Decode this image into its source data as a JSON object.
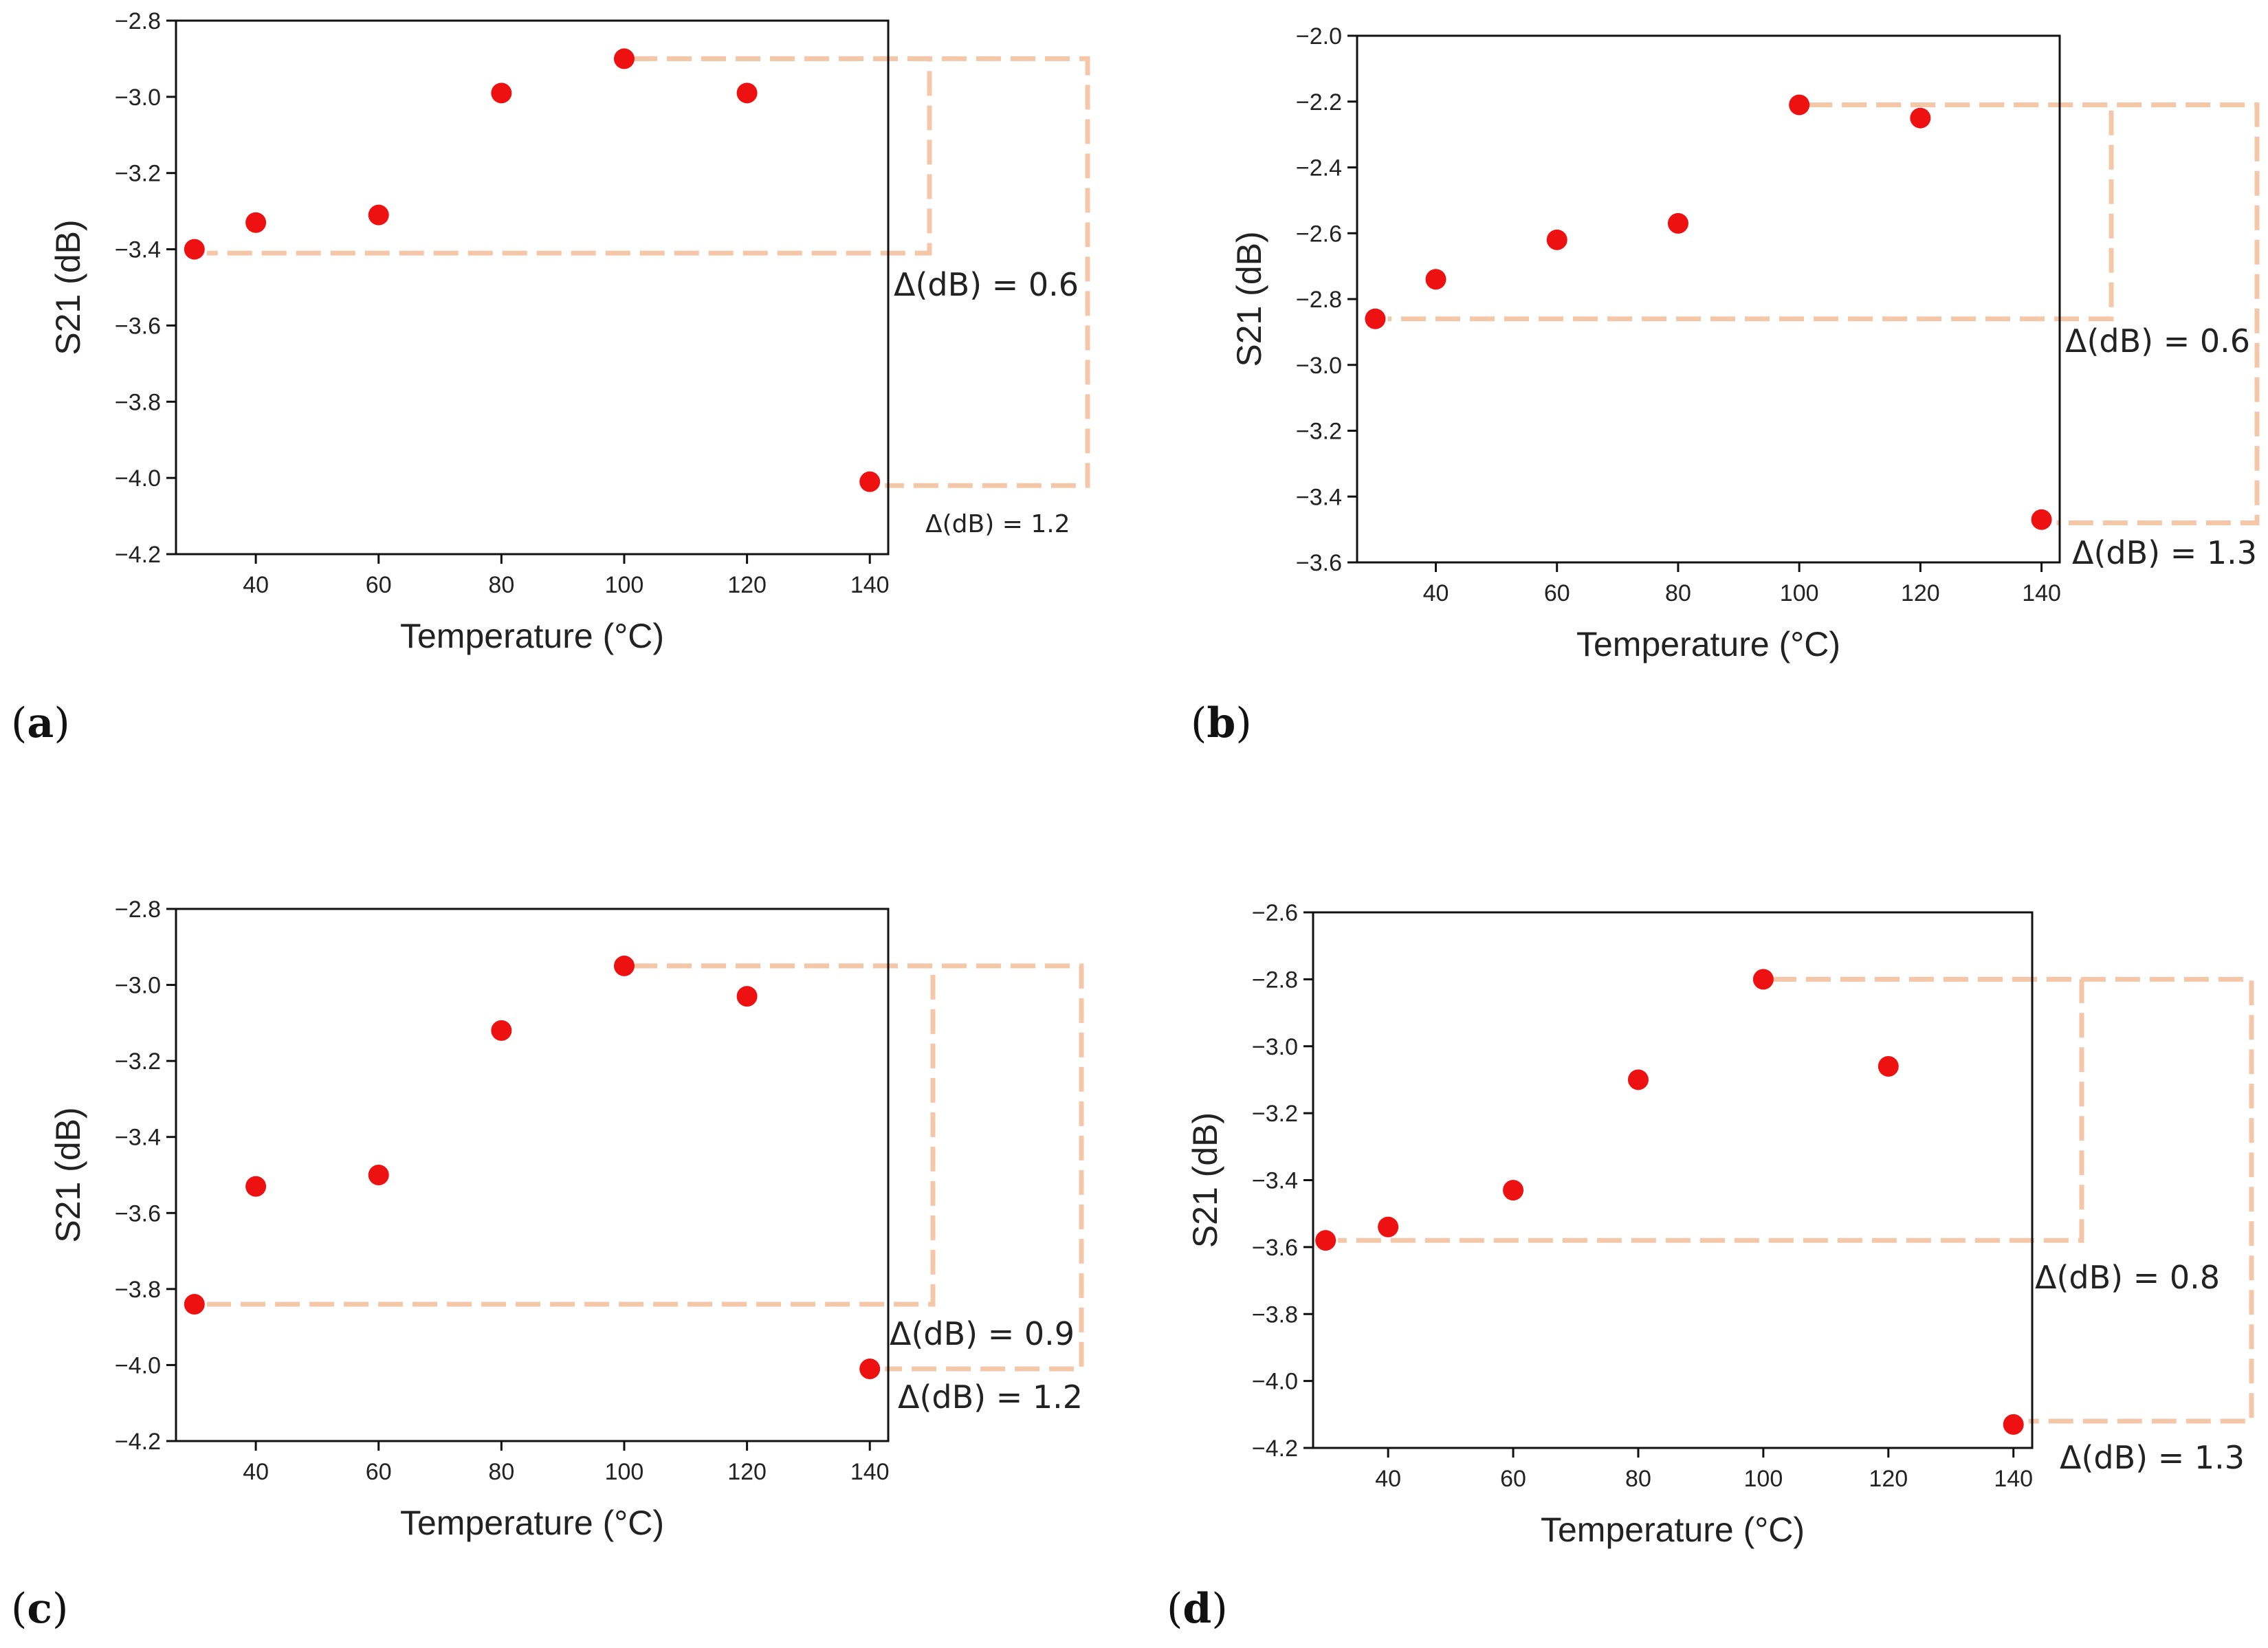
{
  "figure": {
    "panel_labels": [
      "(a)",
      "(b)",
      "(c)",
      "(d)"
    ]
  },
  "chart_data": [
    {
      "type": "scatter",
      "panel": "(a)",
      "xlabel": "Temperature (°C)",
      "ylabel": "S21 (dB)",
      "xlim": [
        27,
        143
      ],
      "ylim": [
        -4.2,
        -2.8
      ],
      "xticks": [
        40,
        60,
        80,
        100,
        120,
        140
      ],
      "yticks": [
        -2.8,
        -3.0,
        -3.2,
        -3.4,
        -3.6,
        -3.8,
        -4.0,
        -4.2
      ],
      "series": [
        {
          "name": "S21",
          "color": "#ee1111",
          "x": [
            30,
            40,
            60,
            80,
            100,
            120,
            140
          ],
          "y": [
            -3.4,
            -3.33,
            -3.31,
            -2.99,
            -2.9,
            -2.99,
            -4.01
          ]
        }
      ],
      "annotations": [
        {
          "text": "Δ(dB) = 0.6",
          "top": -2.9,
          "bottom": -3.41,
          "size": "large"
        },
        {
          "text": "Δ(dB) = 1.2",
          "top": -2.9,
          "bottom": -4.02,
          "size": "small"
        }
      ]
    },
    {
      "type": "scatter",
      "panel": "(b)",
      "xlabel": "Temperature (°C)",
      "ylabel": "S21 (dB)",
      "xlim": [
        27,
        143
      ],
      "ylim": [
        -3.6,
        -2.0
      ],
      "xticks": [
        40,
        60,
        80,
        100,
        120,
        140
      ],
      "yticks": [
        -2.0,
        -2.2,
        -2.4,
        -2.6,
        -2.8,
        -3.0,
        -3.2,
        -3.4,
        -3.6
      ],
      "series": [
        {
          "name": "S21",
          "color": "#ee1111",
          "x": [
            30,
            40,
            60,
            80,
            100,
            120,
            140
          ],
          "y": [
            -2.86,
            -2.74,
            -2.62,
            -2.57,
            -2.21,
            -2.25,
            -3.47
          ]
        }
      ],
      "annotations": [
        {
          "text": "Δ(dB) = 0.6",
          "top": -2.21,
          "bottom": -2.86,
          "size": "large"
        },
        {
          "text": "Δ(dB) = 1.3",
          "top": -2.21,
          "bottom": -3.48,
          "size": "large"
        }
      ]
    },
    {
      "type": "scatter",
      "panel": "(c)",
      "xlabel": "Temperature (°C)",
      "ylabel": "S21 (dB)",
      "xlim": [
        27,
        143
      ],
      "ylim": [
        -4.2,
        -2.8
      ],
      "xticks": [
        40,
        60,
        80,
        100,
        120,
        140
      ],
      "yticks": [
        -2.8,
        -3.0,
        -3.2,
        -3.4,
        -3.6,
        -3.8,
        -4.0,
        -4.2
      ],
      "series": [
        {
          "name": "S21",
          "color": "#ee1111",
          "x": [
            30,
            40,
            60,
            80,
            100,
            120,
            140
          ],
          "y": [
            -3.84,
            -3.53,
            -3.5,
            -3.12,
            -2.95,
            -3.03,
            -4.01
          ]
        }
      ],
      "annotations": [
        {
          "text": "Δ(dB) = 0.9",
          "top": -2.95,
          "bottom": -3.84,
          "size": "large"
        },
        {
          "text": "Δ(dB) = 1.2",
          "top": -2.95,
          "bottom": -4.01,
          "size": "large"
        }
      ]
    },
    {
      "type": "scatter",
      "panel": "(d)",
      "xlabel": "Temperature (°C)",
      "ylabel": "S21 (dB)",
      "xlim": [
        28,
        143
      ],
      "ylim": [
        -4.2,
        -2.6
      ],
      "xticks": [
        40,
        60,
        80,
        100,
        120,
        140
      ],
      "yticks": [
        -2.6,
        -2.8,
        -3.0,
        -3.2,
        -3.4,
        -3.6,
        -3.8,
        -4.0,
        -4.2
      ],
      "series": [
        {
          "name": "S21",
          "color": "#ee1111",
          "x": [
            30,
            40,
            60,
            80,
            100,
            120,
            140
          ],
          "y": [
            -3.58,
            -3.54,
            -3.43,
            -3.1,
            -2.8,
            -3.06,
            -4.13
          ]
        }
      ],
      "annotations": [
        {
          "text": "Δ(dB) = 0.8",
          "top": -2.8,
          "bottom": -3.58,
          "size": "large"
        },
        {
          "text": "Δ(dB) = 1.3",
          "top": -2.8,
          "bottom": -4.12,
          "size": "large"
        }
      ]
    }
  ]
}
